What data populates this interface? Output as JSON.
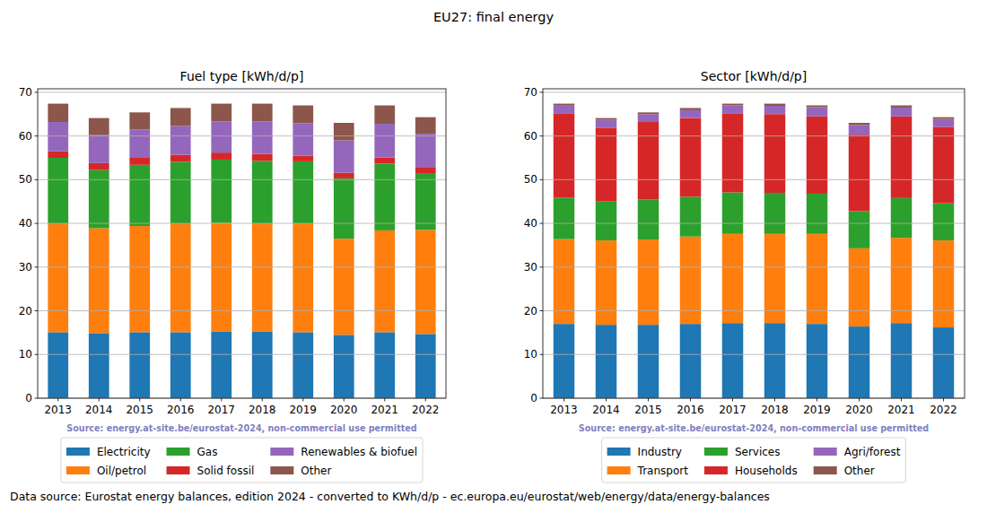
{
  "suptitle": "EU27: final energy",
  "footer": "Data source: Eurostat energy balances, edition 2024 - converted to KWh/d/p - ec.europa.eu/eurostat/web/energy/data/energy-balances",
  "chart_data": [
    {
      "type": "bar",
      "title": "Fuel type [kWh/d/p]",
      "stacked": true,
      "grid": true,
      "legend": "bottom",
      "annotation": "Source: energy.at-site.be/eurostat-2024, non-commercial use permitted",
      "categories": [
        "2013",
        "2014",
        "2015",
        "2016",
        "2017",
        "2018",
        "2019",
        "2020",
        "2021",
        "2022"
      ],
      "ylim": [
        0,
        70.8
      ],
      "yticks": [
        0,
        10,
        20,
        30,
        40,
        50,
        60,
        70
      ],
      "series": [
        {
          "name": "Electricity",
          "color": "#1f77b4",
          "values": [
            15.1,
            14.9,
            15.1,
            15.1,
            15.3,
            15.3,
            15.1,
            14.5,
            15.1,
            14.7
          ]
        },
        {
          "name": "Oil/petrol",
          "color": "#ff7f0e",
          "values": [
            24.8,
            24.0,
            24.3,
            24.8,
            24.8,
            24.7,
            24.9,
            22.0,
            23.3,
            23.8
          ]
        },
        {
          "name": "Gas",
          "color": "#2ca02c",
          "values": [
            15.1,
            13.3,
            14.0,
            14.2,
            14.5,
            14.3,
            14.2,
            13.8,
            15.3,
            13.0
          ]
        },
        {
          "name": "Solid fossil",
          "color": "#d62728",
          "values": [
            1.5,
            1.6,
            1.6,
            1.6,
            1.6,
            1.6,
            1.3,
            1.3,
            1.4,
            1.4
          ]
        },
        {
          "name": "Renewables & biofuel",
          "color": "#9467bd",
          "values": [
            6.7,
            6.4,
            6.5,
            6.6,
            7.1,
            7.4,
            7.4,
            7.4,
            7.7,
            7.6
          ]
        },
        {
          "name": "Other",
          "color": "#8c564b",
          "values": [
            4.2,
            3.9,
            3.9,
            4.1,
            4.1,
            4.1,
            4.1,
            4.0,
            4.2,
            3.8
          ]
        }
      ]
    },
    {
      "type": "bar",
      "title": "Sector [kWh/d/p]",
      "stacked": true,
      "grid": true,
      "legend": "bottom",
      "annotation": "Source: energy.at-site.be/eurostat-2024, non-commercial use permitted",
      "categories": [
        "2013",
        "2014",
        "2015",
        "2016",
        "2017",
        "2018",
        "2019",
        "2020",
        "2021",
        "2022"
      ],
      "ylim": [
        0,
        70.8
      ],
      "yticks": [
        0,
        10,
        20,
        30,
        40,
        50,
        60,
        70
      ],
      "series": [
        {
          "name": "Industry",
          "color": "#1f77b4",
          "values": [
            17.0,
            16.8,
            16.8,
            17.0,
            17.2,
            17.2,
            17.0,
            16.4,
            17.2,
            16.2
          ]
        },
        {
          "name": "Transport",
          "color": "#ff7f0e",
          "values": [
            19.4,
            19.3,
            19.5,
            20.0,
            20.4,
            20.4,
            20.6,
            17.9,
            19.5,
            19.9
          ]
        },
        {
          "name": "Services",
          "color": "#2ca02c",
          "values": [
            9.5,
            8.9,
            9.2,
            9.1,
            9.5,
            9.4,
            9.2,
            8.5,
            9.1,
            8.5
          ]
        },
        {
          "name": "Households",
          "color": "#d62728",
          "values": [
            19.3,
            16.9,
            17.7,
            18.0,
            18.1,
            18.0,
            17.7,
            17.5,
            18.7,
            17.5
          ]
        },
        {
          "name": "Agri/forest",
          "color": "#9467bd",
          "values": [
            1.9,
            1.8,
            1.8,
            1.8,
            1.8,
            1.9,
            2.1,
            2.2,
            2.0,
            1.8
          ]
        },
        {
          "name": "Other",
          "color": "#8c564b",
          "values": [
            0.3,
            0.4,
            0.4,
            0.5,
            0.4,
            0.5,
            0.4,
            0.5,
            0.5,
            0.4
          ]
        }
      ]
    }
  ]
}
